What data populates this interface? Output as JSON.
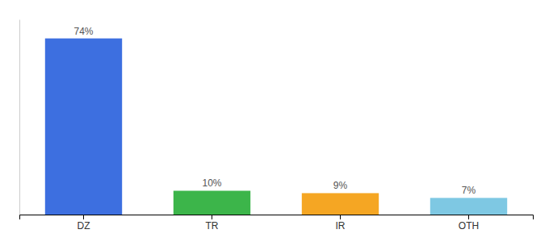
{
  "chart_data": {
    "type": "bar",
    "categories": [
      "DZ",
      "TR",
      "IR",
      "OTH"
    ],
    "values": [
      74,
      10,
      9,
      7
    ],
    "value_labels": [
      "74%",
      "10%",
      "9%",
      "7%"
    ],
    "colors": [
      "#3d6fe0",
      "#3cb54a",
      "#f5a623",
      "#7ec8e3"
    ],
    "ylim": [
      0,
      82
    ],
    "data_labels": true,
    "tick_labels": "x"
  }
}
